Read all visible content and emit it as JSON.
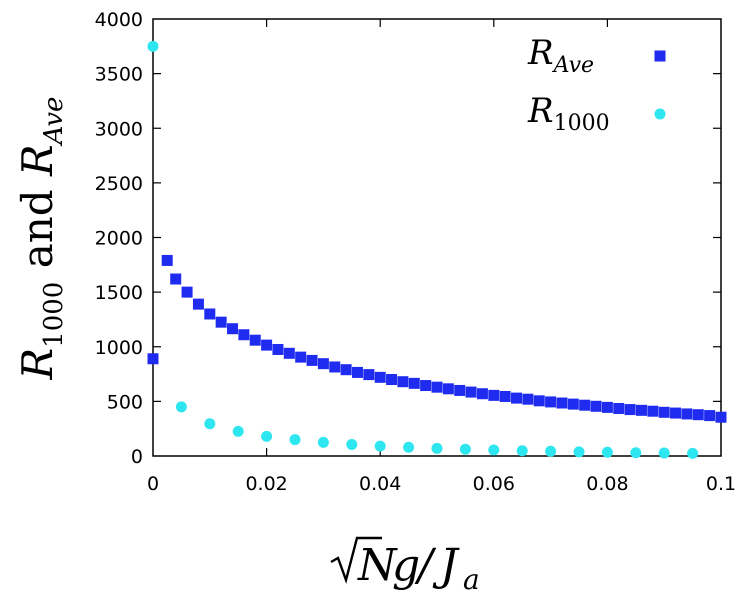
{
  "chart_data": {
    "type": "scatter",
    "title": "",
    "xlabel": "√N g / J_a",
    "ylabel": "R_1000 and R_Ave",
    "xlim": [
      0,
      0.1
    ],
    "ylim": [
      0,
      4000
    ],
    "x_ticks": [
      "0",
      "0.02",
      "0.04",
      "0.06",
      "0.08",
      "0.1"
    ],
    "y_ticks": [
      "0",
      "500",
      "1000",
      "1500",
      "2000",
      "2500",
      "3000",
      "3500",
      "4000"
    ],
    "grid": false,
    "legend_position": "top-right",
    "series": [
      {
        "name": "R_Ave",
        "marker": "square",
        "color": "#1f2cf0",
        "points": [
          [
            0,
            890
          ],
          [
            0.0025,
            1790
          ],
          [
            0.004,
            1620
          ],
          [
            0.006,
            1500
          ],
          [
            0.008,
            1390
          ],
          [
            0.01,
            1300
          ],
          [
            0.012,
            1225
          ],
          [
            0.014,
            1165
          ],
          [
            0.016,
            1110
          ],
          [
            0.018,
            1060
          ],
          [
            0.02,
            1015
          ],
          [
            0.022,
            975
          ],
          [
            0.024,
            940
          ],
          [
            0.026,
            905
          ],
          [
            0.028,
            875
          ],
          [
            0.03,
            845
          ],
          [
            0.032,
            815
          ],
          [
            0.034,
            790
          ],
          [
            0.036,
            765
          ],
          [
            0.038,
            745
          ],
          [
            0.04,
            720
          ],
          [
            0.042,
            700
          ],
          [
            0.044,
            680
          ],
          [
            0.046,
            665
          ],
          [
            0.048,
            645
          ],
          [
            0.05,
            630
          ],
          [
            0.052,
            615
          ],
          [
            0.054,
            600
          ],
          [
            0.056,
            585
          ],
          [
            0.058,
            570
          ],
          [
            0.06,
            555
          ],
          [
            0.062,
            545
          ],
          [
            0.064,
            530
          ],
          [
            0.066,
            520
          ],
          [
            0.068,
            505
          ],
          [
            0.07,
            495
          ],
          [
            0.072,
            485
          ],
          [
            0.074,
            475
          ],
          [
            0.076,
            465
          ],
          [
            0.078,
            455
          ],
          [
            0.08,
            445
          ],
          [
            0.082,
            435
          ],
          [
            0.084,
            425
          ],
          [
            0.086,
            418
          ],
          [
            0.088,
            410
          ],
          [
            0.09,
            400
          ],
          [
            0.092,
            393
          ],
          [
            0.094,
            385
          ],
          [
            0.096,
            378
          ],
          [
            0.098,
            370
          ],
          [
            0.1,
            355
          ]
        ]
      },
      {
        "name": "R_1000",
        "marker": "circle",
        "color": "#2ee6f0",
        "points": [
          [
            0,
            3750
          ],
          [
            0.005,
            450
          ],
          [
            0.01,
            295
          ],
          [
            0.015,
            225
          ],
          [
            0.02,
            180
          ],
          [
            0.025,
            150
          ],
          [
            0.03,
            125
          ],
          [
            0.035,
            105
          ],
          [
            0.04,
            90
          ],
          [
            0.045,
            80
          ],
          [
            0.05,
            70
          ],
          [
            0.055,
            62
          ],
          [
            0.06,
            55
          ],
          [
            0.065,
            48
          ],
          [
            0.07,
            43
          ],
          [
            0.075,
            38
          ],
          [
            0.08,
            34
          ],
          [
            0.085,
            30
          ],
          [
            0.09,
            27
          ],
          [
            0.095,
            24
          ]
        ]
      }
    ]
  }
}
